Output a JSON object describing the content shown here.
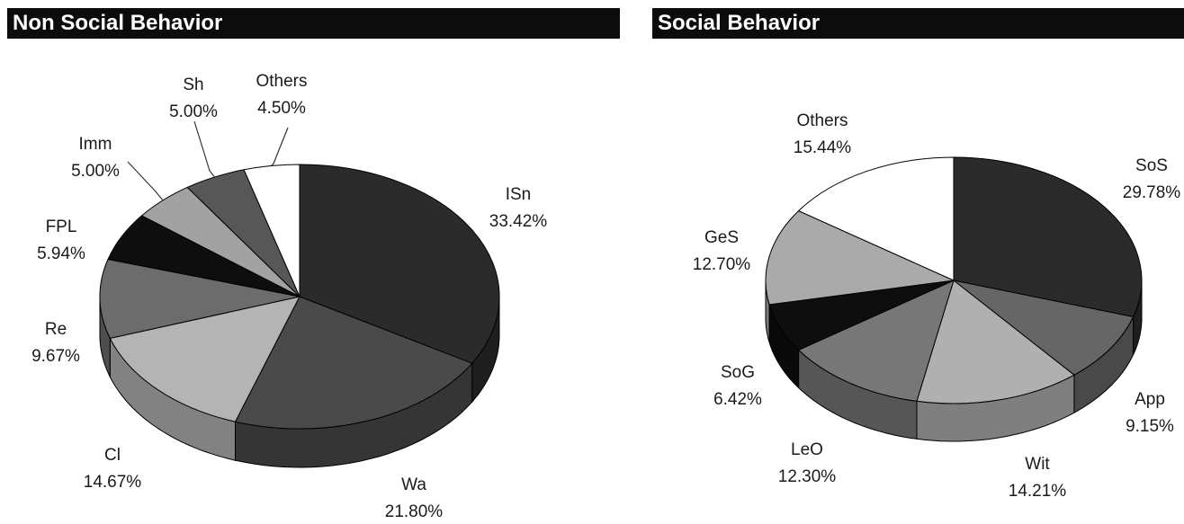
{
  "chart_data": [
    {
      "type": "pie",
      "title": "Non Social Behavior",
      "slices": [
        {
          "label": "ISn",
          "value": 33.42,
          "value_text": "33.42%",
          "color": "#2b2b2b"
        },
        {
          "label": "Wa",
          "value": 21.8,
          "value_text": "21.80%",
          "color": "#4a4a4a"
        },
        {
          "label": "Cl",
          "value": 14.67,
          "value_text": "14.67%",
          "color": "#b4b4b4"
        },
        {
          "label": "Re",
          "value": 9.67,
          "value_text": "9.67%",
          "color": "#6c6c6c"
        },
        {
          "label": "FPL",
          "value": 5.94,
          "value_text": "5.94%",
          "color": "#0e0e0e"
        },
        {
          "label": "Imm",
          "value": 5.0,
          "value_text": "5.00%",
          "color": "#a2a2a2"
        },
        {
          "label": "Sh",
          "value": 5.0,
          "value_text": "5.00%",
          "color": "#575757"
        },
        {
          "label": "Others",
          "value": 4.5,
          "value_text": "4.50%",
          "color": "#ffffff"
        }
      ]
    },
    {
      "type": "pie",
      "title": "Social Behavior",
      "slices": [
        {
          "label": "SoS",
          "value": 29.78,
          "value_text": "29.78%",
          "color": "#2b2b2b"
        },
        {
          "label": "App",
          "value": 9.15,
          "value_text": "9.15%",
          "color": "#666666"
        },
        {
          "label": "Wit",
          "value": 14.21,
          "value_text": "14.21%",
          "color": "#b0b0b0"
        },
        {
          "label": "LeO",
          "value": 12.3,
          "value_text": "12.30%",
          "color": "#777777"
        },
        {
          "label": "SoG",
          "value": 6.42,
          "value_text": "6.42%",
          "color": "#0e0e0e"
        },
        {
          "label": "GeS",
          "value": 12.7,
          "value_text": "12.70%",
          "color": "#aaaaaa"
        },
        {
          "label": "Others",
          "value": 15.44,
          "value_text": "15.44%",
          "color": "#ffffff"
        }
      ]
    }
  ]
}
